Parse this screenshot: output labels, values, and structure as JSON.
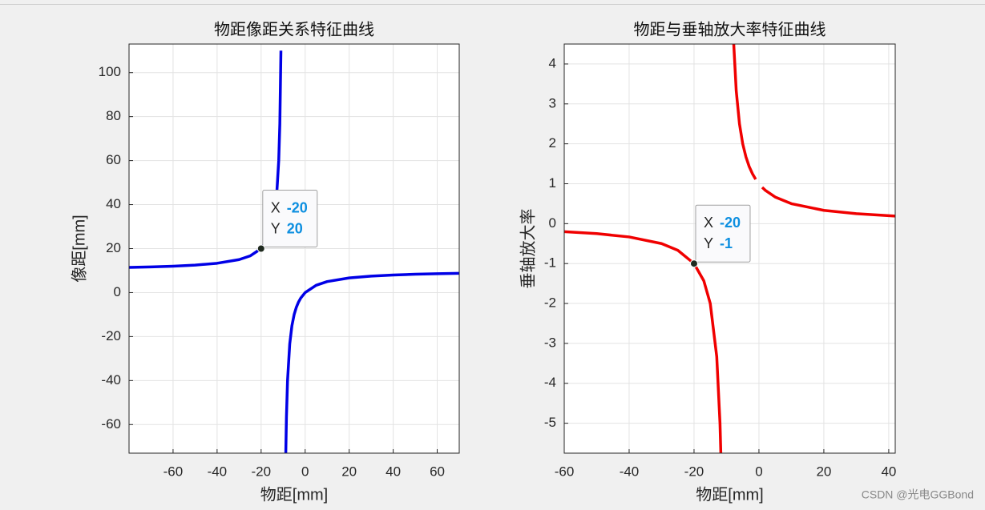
{
  "charts": [
    {
      "type": "line",
      "title": "物距像距关系特征曲线",
      "xlabel": "物距[mm]",
      "ylabel": "像距[mm]",
      "xlim": [
        -80,
        70
      ],
      "ylim": [
        -73,
        113
      ],
      "xticks": [
        -60,
        -40,
        -20,
        0,
        20,
        40,
        60
      ],
      "yticks": [
        -60,
        -40,
        -20,
        0,
        20,
        40,
        60,
        80,
        100
      ],
      "grid": true,
      "x": [
        -80,
        -70,
        -60,
        -50,
        -40,
        -30,
        -25,
        -20,
        -17,
        -15,
        -13,
        -12,
        -11.5,
        -11,
        null,
        -8.8,
        -8.5,
        -8,
        -7,
        -6,
        -5,
        -4,
        -3,
        -2,
        0,
        5,
        10,
        20,
        30,
        40,
        50,
        60,
        70
      ],
      "series": [
        {
          "color": "#0000e6",
          "values": [
            11.43,
            11.67,
            12,
            12.5,
            13.33,
            15,
            16.67,
            20,
            24.29,
            30,
            43.33,
            60,
            76.67,
            110,
            null,
            -73.33,
            -56.67,
            -40,
            -23.33,
            -15,
            -10,
            -6.67,
            -4.29,
            -2.5,
            0,
            3.33,
            5,
            6.67,
            7.5,
            8,
            8.33,
            8.57,
            8.75
          ]
        }
      ],
      "datatip": {
        "x_name": "X",
        "y_name": "Y",
        "x": -20,
        "y": 20
      }
    },
    {
      "type": "line",
      "title": "物距与垂轴放大率特征曲线",
      "xlabel": "物距[mm]",
      "ylabel": "垂轴放大率",
      "xlim": [
        -60,
        42
      ],
      "ylim": [
        -5.75,
        4.5
      ],
      "xticks": [
        -60,
        -40,
        -20,
        0,
        20,
        40
      ],
      "yticks": [
        -5,
        -4,
        -3,
        -2,
        -1,
        0,
        1,
        2,
        3,
        4
      ],
      "grid": true,
      "x": [
        -60,
        -50,
        -40,
        -30,
        -25,
        -20,
        -17,
        -15,
        -13,
        -12,
        -11.7,
        null,
        -7.8,
        -7,
        -6,
        -5,
        -4,
        -3,
        -2,
        -1,
        null,
        1,
        2,
        5,
        10,
        20,
        30,
        40,
        42
      ],
      "series": [
        {
          "color": "#f00000",
          "values": [
            -0.2,
            -0.25,
            -0.333,
            -0.5,
            -0.667,
            -1,
            -1.429,
            -2,
            -3.333,
            -5,
            -5.88,
            null,
            4.55,
            3.33,
            2.5,
            2,
            1.67,
            1.43,
            1.25,
            1.11,
            null,
            0.909,
            0.833,
            0.667,
            0.5,
            0.333,
            0.25,
            0.2,
            0.19
          ]
        }
      ],
      "datatip": {
        "x_name": "X",
        "y_name": "Y",
        "x": -20,
        "y": -1
      }
    }
  ],
  "watermark": "CSDN @光电GGBond"
}
